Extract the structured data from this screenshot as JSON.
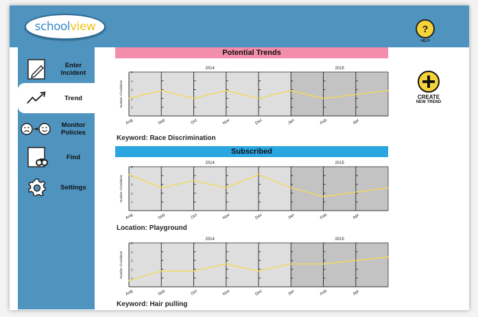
{
  "app": {
    "logo_part1": "school",
    "logo_part2": "view"
  },
  "help": {
    "symbol": "?",
    "label": "HELP"
  },
  "sidebar": {
    "items": [
      {
        "label": "Enter Incident",
        "icon": "pencil-document-icon"
      },
      {
        "label": "Trend",
        "icon": "trend-arrow-icon",
        "active": true
      },
      {
        "label": "Monitor Policies",
        "icon": "sad-to-happy-face-icon"
      },
      {
        "label": "Find",
        "icon": "binoculars-document-icon"
      },
      {
        "label": "Settings",
        "icon": "gear-icon"
      }
    ]
  },
  "sections": {
    "potential": "Potential Trends",
    "subscribed": "Subscribed"
  },
  "create": {
    "line1": "CREATE",
    "line2": "NEW TREND"
  },
  "colors": {
    "header": "#4f93bf",
    "pink": "#f28dab",
    "blue": "#2aa6e0",
    "accent": "#f5d33a",
    "line": "#f2d95a"
  },
  "chart_data": [
    {
      "type": "line",
      "years": [
        "2014",
        "2015"
      ],
      "categories": [
        "Aug",
        "Sep",
        "Oct",
        "Nov",
        "Dec",
        "Jan",
        "Feb",
        "Apr"
      ],
      "ylabel": "Number of Incidents",
      "yticks": [
        "5",
        "4",
        "3",
        "2",
        "1"
      ],
      "ylim": [
        0,
        5
      ],
      "values": [
        2.0,
        2.9,
        2.0,
        2.9,
        2.0,
        2.9,
        2.0,
        2.9
      ],
      "caption": "Keyword: Race Discrimination"
    },
    {
      "type": "line",
      "years": [
        "2014",
        "2015"
      ],
      "categories": [
        "Aug",
        "Sep",
        "Oct",
        "Nov",
        "Dec",
        "Jan",
        "Feb",
        "Apr"
      ],
      "ylabel": "Number of Incidents",
      "yticks": [
        "5",
        "4",
        "3",
        "2",
        "1"
      ],
      "ylim": [
        0,
        5
      ],
      "values": [
        4.1,
        2.6,
        3.4,
        2.6,
        4.1,
        2.6,
        1.6,
        2.6
      ],
      "caption": "Location: Playground"
    },
    {
      "type": "line",
      "years": [
        "2014",
        "2015"
      ],
      "categories": [
        "Aug",
        "Sep",
        "Oct",
        "Nov",
        "Dec",
        "Jan",
        "Feb",
        "Apr"
      ],
      "ylabel": "Number of Incidents",
      "yticks": [
        "5",
        "4",
        "3",
        "2",
        "1"
      ],
      "ylim": [
        0,
        5
      ],
      "values": [
        0.7,
        1.8,
        1.8,
        2.6,
        1.8,
        2.6,
        2.6,
        3.4
      ],
      "caption": "Keyword: Hair pulling"
    }
  ]
}
